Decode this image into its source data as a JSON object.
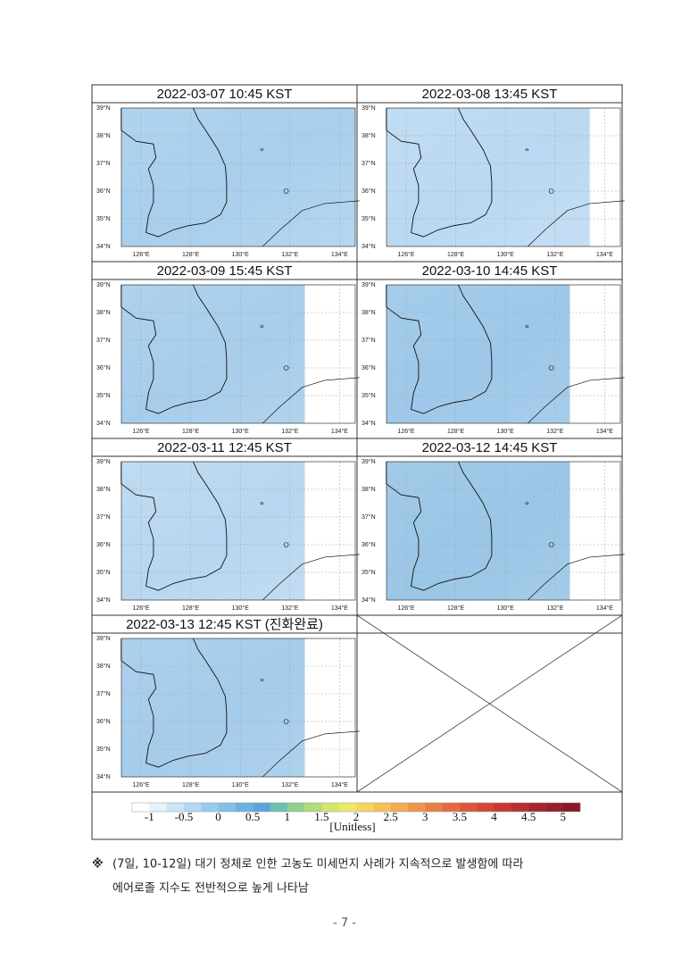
{
  "panels": [
    {
      "title": "2022-03-07  10:45  KST"
    },
    {
      "title": "2022-03-08  13:45  KST"
    },
    {
      "title": "2022-03-09  15:45  KST"
    },
    {
      "title": "2022-03-10  14:45  KST"
    },
    {
      "title": "2022-03-11  12:45  KST"
    },
    {
      "title": "2022-03-12  14:45  KST"
    },
    {
      "title": "2022-03-13  12:45  KST  (진화완료)"
    }
  ],
  "map_axes": {
    "lat_labels": [
      "39°N",
      "38°N",
      "37°N",
      "36°N",
      "35°N",
      "34°N"
    ],
    "lon_labels": [
      "126°E",
      "128°E",
      "130°E",
      "132°E",
      "134°E"
    ]
  },
  "colorbar": {
    "ticks": [
      -1,
      -0.5,
      0,
      0.5,
      1,
      1.5,
      2,
      2.5,
      3,
      3.5,
      4,
      4.5,
      5
    ],
    "range": [
      -1.25,
      5.25
    ],
    "colors": [
      "#ffffff",
      "#e4f2fb",
      "#cbe5f6",
      "#b2d8f2",
      "#9acbed",
      "#83bee8",
      "#6cb1e2",
      "#58a4dc",
      "#6fbfb0",
      "#8fd08f",
      "#b0dc7c",
      "#d2e66e",
      "#ede86a",
      "#f3d85f",
      "#f3c258",
      "#f1ab52",
      "#ee954c",
      "#ea7f46",
      "#e46a41",
      "#dc573c",
      "#d24738",
      "#c53a35",
      "#b62f31",
      "#a6262e",
      "#96202b",
      "#861a28"
    ],
    "label": "[Unitless]"
  },
  "note": {
    "symbol": "※",
    "lines": [
      "(7일, 10-12일) 대기 정체로 인한 고농도 미세먼지 사례가 지속적으로 발생함에 따라",
      "에어로졸 지수도 전반적으로 높게 나타남"
    ]
  },
  "page_number": "- 7 -"
}
